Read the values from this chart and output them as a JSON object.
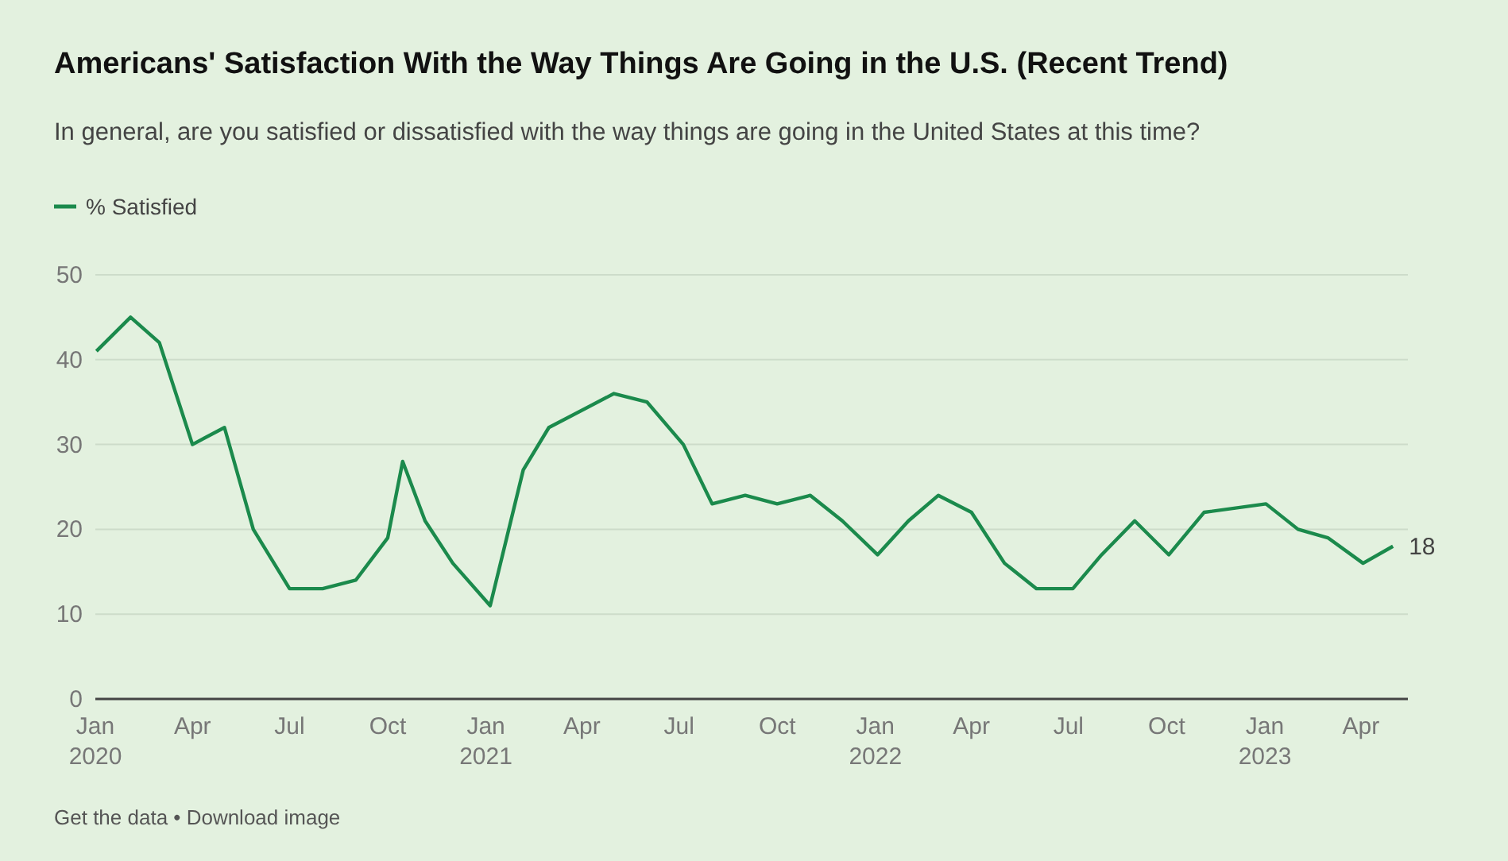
{
  "chart_data": {
    "type": "line",
    "title": "Americans' Satisfaction With the Way Things Are Going in the U.S. (Recent Trend)",
    "subtitle": "In general, are you satisfied or dissatisfied with the way things are going in the United States at this time?",
    "annotations": [
      "Get the data • Download image"
    ],
    "x": [
      "2020-01-02",
      "2020-02-03",
      "2020-03-01",
      "2020-04-01",
      "2020-05-01",
      "2020-05-28",
      "2020-07-01",
      "2020-08-01",
      "2020-09-01",
      "2020-10-01",
      "2020-10-15",
      "2020-11-05",
      "2020-12-01",
      "2021-01-05",
      "2021-02-05",
      "2021-03-01",
      "2021-05-01",
      "2021-06-01",
      "2021-07-05",
      "2021-08-01",
      "2021-09-01",
      "2021-10-01",
      "2021-11-01",
      "2021-12-01",
      "2022-01-03",
      "2022-02-01",
      "2022-03-01",
      "2022-04-01",
      "2022-05-02",
      "2022-06-01",
      "2022-07-05",
      "2022-08-01",
      "2022-09-01",
      "2022-10-03",
      "2022-11-05",
      "2023-01-02",
      "2023-02-01",
      "2023-03-01",
      "2023-04-03",
      "2023-05-01"
    ],
    "series": [
      {
        "name": "% Satisfied",
        "color": "#1b8a4c",
        "values": [
          41,
          45,
          42,
          30,
          32,
          20,
          13,
          13,
          14,
          19,
          28,
          21,
          16,
          11,
          27,
          32,
          36,
          35,
          30,
          23,
          24,
          23,
          24,
          21,
          17,
          21,
          24,
          22,
          16,
          13,
          13,
          17,
          21,
          17,
          22,
          23,
          20,
          19,
          16,
          18
        ],
        "value_labels": [
          null,
          null,
          null,
          null,
          null,
          null,
          null,
          null,
          null,
          null,
          null,
          null,
          null,
          null,
          null,
          null,
          null,
          null,
          null,
          null,
          null,
          null,
          null,
          null,
          null,
          null,
          null,
          null,
          null,
          null,
          null,
          null,
          null,
          null,
          null,
          null,
          null,
          null,
          null,
          "18"
        ]
      }
    ],
    "xlim": [
      "2020-01-01",
      "2023-05-15"
    ],
    "xticks": [
      {
        "value": "2020-01-01",
        "label": "Jan 2020"
      },
      {
        "value": "2020-04-01",
        "label": "Apr"
      },
      {
        "value": "2020-07-01",
        "label": "Jul"
      },
      {
        "value": "2020-10-01",
        "label": "Oct"
      },
      {
        "value": "2021-01-01",
        "label": "Jan 2021"
      },
      {
        "value": "2021-04-01",
        "label": "Apr"
      },
      {
        "value": "2021-07-01",
        "label": "Jul"
      },
      {
        "value": "2021-10-01",
        "label": "Oct"
      },
      {
        "value": "2022-01-01",
        "label": "Jan 2022"
      },
      {
        "value": "2022-04-01",
        "label": "Apr"
      },
      {
        "value": "2022-07-01",
        "label": "Jul"
      },
      {
        "value": "2022-10-01",
        "label": "Oct"
      },
      {
        "value": "2023-01-01",
        "label": "Jan 2023"
      },
      {
        "value": "2023-04-01",
        "label": "Apr"
      }
    ],
    "ylim": [
      0,
      50
    ],
    "yticks": [
      0,
      10,
      20,
      30,
      40,
      50
    ],
    "grid": "y",
    "legend": "top left",
    "marker": "none",
    "line_style": "solid"
  }
}
